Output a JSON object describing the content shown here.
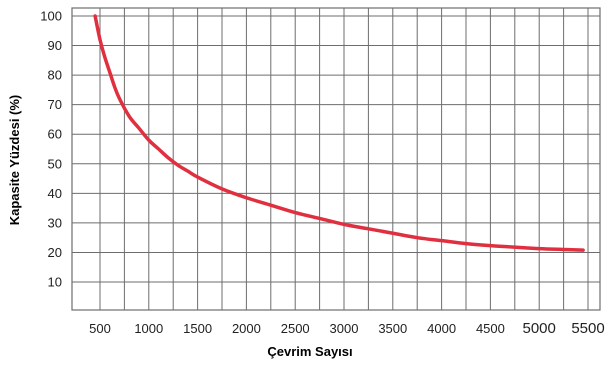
{
  "chart_data": {
    "type": "line",
    "xlabel": "Çevrim Sayısı",
    "ylabel": "Kapasite Yüzdesi (%)",
    "xlim": [
      450,
      5500
    ],
    "ylim": [
      0,
      100
    ],
    "grid": true,
    "x_ticks": [
      "500",
      "1000",
      "1500",
      "2000",
      "2500",
      "3000",
      "3500",
      "4000",
      "4500",
      "5000",
      "5500"
    ],
    "y_ticks": [
      "100",
      "90",
      "80",
      "70",
      "60",
      "50",
      "40",
      "30",
      "20",
      "10"
    ],
    "series_color": "#e03040",
    "series": [
      {
        "x": [
          450,
          500,
          550,
          600,
          650,
          700,
          800,
          900,
          1000,
          1100,
          1200,
          1300,
          1400,
          1500,
          1750,
          2000,
          2250,
          2500,
          2750,
          3000,
          3250,
          3500,
          3750,
          4000,
          4250,
          4500,
          4750,
          5000,
          5250,
          5450
        ],
        "y": [
          100,
          92,
          86,
          81,
          76,
          72,
          66,
          62,
          58,
          55,
          52,
          49.5,
          47.5,
          45.5,
          41.5,
          38.5,
          36,
          33.5,
          31.5,
          29.5,
          28,
          26.5,
          25,
          24,
          23,
          22.3,
          21.8,
          21.3,
          21,
          20.8
        ]
      }
    ]
  }
}
